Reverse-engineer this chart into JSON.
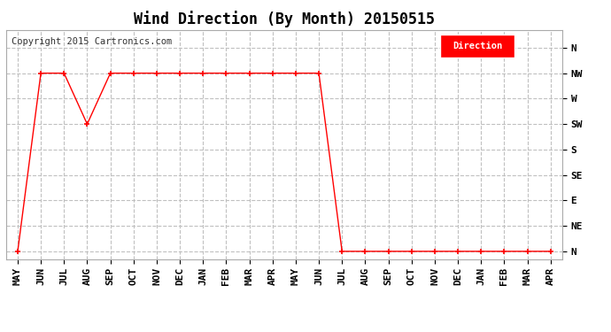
{
  "title": "Wind Direction (By Month) 20150515",
  "copyright": "Copyright 2015 Cartronics.com",
  "legend_label": "Direction",
  "legend_bg": "#ff0000",
  "legend_text_color": "#ffffff",
  "x_labels": [
    "MAY",
    "JUN",
    "JUL",
    "AUG",
    "SEP",
    "OCT",
    "NOV",
    "DEC",
    "JAN",
    "FEB",
    "MAR",
    "APR",
    "MAY",
    "JUN",
    "JUL",
    "AUG",
    "SEP",
    "OCT",
    "NOV",
    "DEC",
    "JAN",
    "FEB",
    "MAR",
    "APR"
  ],
  "y_labels": [
    "N",
    "NE",
    "E",
    "SE",
    "S",
    "SW",
    "W",
    "NW",
    "N"
  ],
  "y_values": [
    0,
    1,
    2,
    3,
    4,
    5,
    6,
    7,
    8
  ],
  "data_x": [
    0,
    1,
    2,
    3,
    4,
    5,
    6,
    7,
    8,
    9,
    10,
    11,
    12,
    13,
    14,
    15,
    16,
    17,
    18,
    19,
    20,
    21,
    22,
    23
  ],
  "data_y": [
    0,
    7,
    7,
    5,
    7,
    7,
    7,
    7,
    7,
    7,
    7,
    7,
    7,
    7,
    0,
    0,
    0,
    0,
    0,
    0,
    0,
    0,
    0,
    0
  ],
  "line_color": "#ff0000",
  "marker": "+",
  "grid_color": "#c0c0c0",
  "bg_color": "#ffffff",
  "plot_bg_color": "#ffffff",
  "title_fontsize": 12,
  "copyright_fontsize": 7.5,
  "tick_fontsize": 8,
  "ylim": [
    -0.3,
    8.7
  ],
  "xlim": [
    -0.5,
    23.5
  ]
}
